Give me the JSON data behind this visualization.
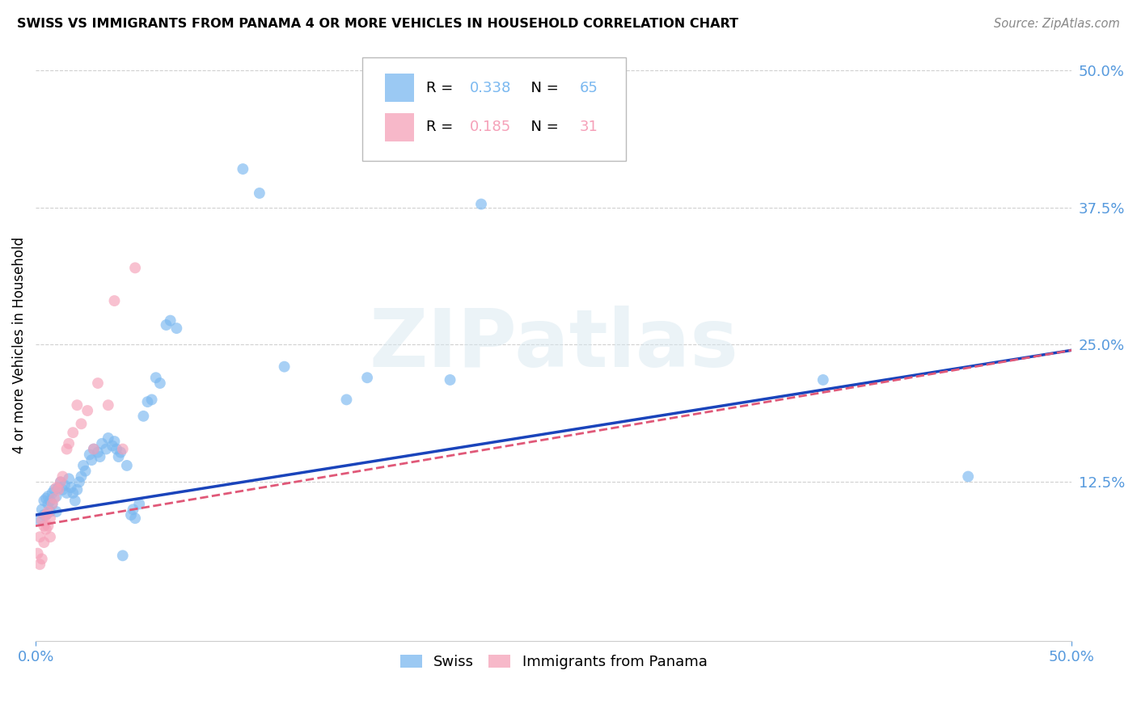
{
  "title": "SWISS VS IMMIGRANTS FROM PANAMA 4 OR MORE VEHICLES IN HOUSEHOLD CORRELATION CHART",
  "source": "Source: ZipAtlas.com",
  "ylabel": "4 or more Vehicles in Household",
  "xlim": [
    0.0,
    0.5
  ],
  "ylim": [
    -0.02,
    0.52
  ],
  "ytick_positions_right": [
    0.5,
    0.375,
    0.25,
    0.125
  ],
  "ytick_labels_right": [
    "50.0%",
    "37.5%",
    "25.0%",
    "12.5%"
  ],
  "grid_color": "#d0d0d0",
  "background_color": "#ffffff",
  "swiss_color": "#7ab8f0",
  "panama_color": "#f5a0b8",
  "swiss_line_color": "#1a44bb",
  "panama_line_color": "#e05878",
  "legend_swiss_R": "0.338",
  "legend_swiss_N": "65",
  "legend_panama_R": "0.185",
  "legend_panama_N": "31",
  "watermark": "ZIPatlas",
  "swiss_x": [
    0.002,
    0.003,
    0.004,
    0.004,
    0.005,
    0.005,
    0.006,
    0.006,
    0.007,
    0.007,
    0.008,
    0.008,
    0.009,
    0.01,
    0.01,
    0.011,
    0.012,
    0.013,
    0.014,
    0.015,
    0.016,
    0.017,
    0.018,
    0.019,
    0.02,
    0.021,
    0.022,
    0.023,
    0.024,
    0.026,
    0.027,
    0.028,
    0.03,
    0.031,
    0.032,
    0.034,
    0.035,
    0.037,
    0.038,
    0.039,
    0.04,
    0.041,
    0.042,
    0.044,
    0.046,
    0.047,
    0.048,
    0.05,
    0.052,
    0.054,
    0.056,
    0.058,
    0.06,
    0.063,
    0.065,
    0.068,
    0.1,
    0.108,
    0.12,
    0.15,
    0.16,
    0.2,
    0.215,
    0.38,
    0.45
  ],
  "swiss_y": [
    0.09,
    0.1,
    0.095,
    0.108,
    0.11,
    0.095,
    0.105,
    0.112,
    0.108,
    0.098,
    0.115,
    0.105,
    0.118,
    0.112,
    0.098,
    0.12,
    0.125,
    0.118,
    0.122,
    0.115,
    0.128,
    0.12,
    0.115,
    0.108,
    0.118,
    0.125,
    0.13,
    0.14,
    0.135,
    0.15,
    0.145,
    0.155,
    0.152,
    0.148,
    0.16,
    0.155,
    0.165,
    0.158,
    0.162,
    0.155,
    0.148,
    0.152,
    0.058,
    0.14,
    0.095,
    0.1,
    0.092,
    0.105,
    0.185,
    0.198,
    0.2,
    0.22,
    0.215,
    0.268,
    0.272,
    0.265,
    0.41,
    0.388,
    0.23,
    0.2,
    0.22,
    0.218,
    0.378,
    0.218,
    0.13
  ],
  "panama_x": [
    0.001,
    0.002,
    0.002,
    0.003,
    0.003,
    0.004,
    0.004,
    0.005,
    0.005,
    0.006,
    0.006,
    0.007,
    0.007,
    0.008,
    0.009,
    0.01,
    0.011,
    0.012,
    0.013,
    0.015,
    0.016,
    0.018,
    0.02,
    0.022,
    0.025,
    0.028,
    0.03,
    0.035,
    0.038,
    0.042,
    0.048
  ],
  "panama_y": [
    0.06,
    0.075,
    0.05,
    0.09,
    0.055,
    0.085,
    0.07,
    0.095,
    0.082,
    0.098,
    0.085,
    0.092,
    0.075,
    0.105,
    0.11,
    0.12,
    0.118,
    0.125,
    0.13,
    0.155,
    0.16,
    0.17,
    0.195,
    0.178,
    0.19,
    0.155,
    0.215,
    0.195,
    0.29,
    0.155,
    0.32
  ]
}
